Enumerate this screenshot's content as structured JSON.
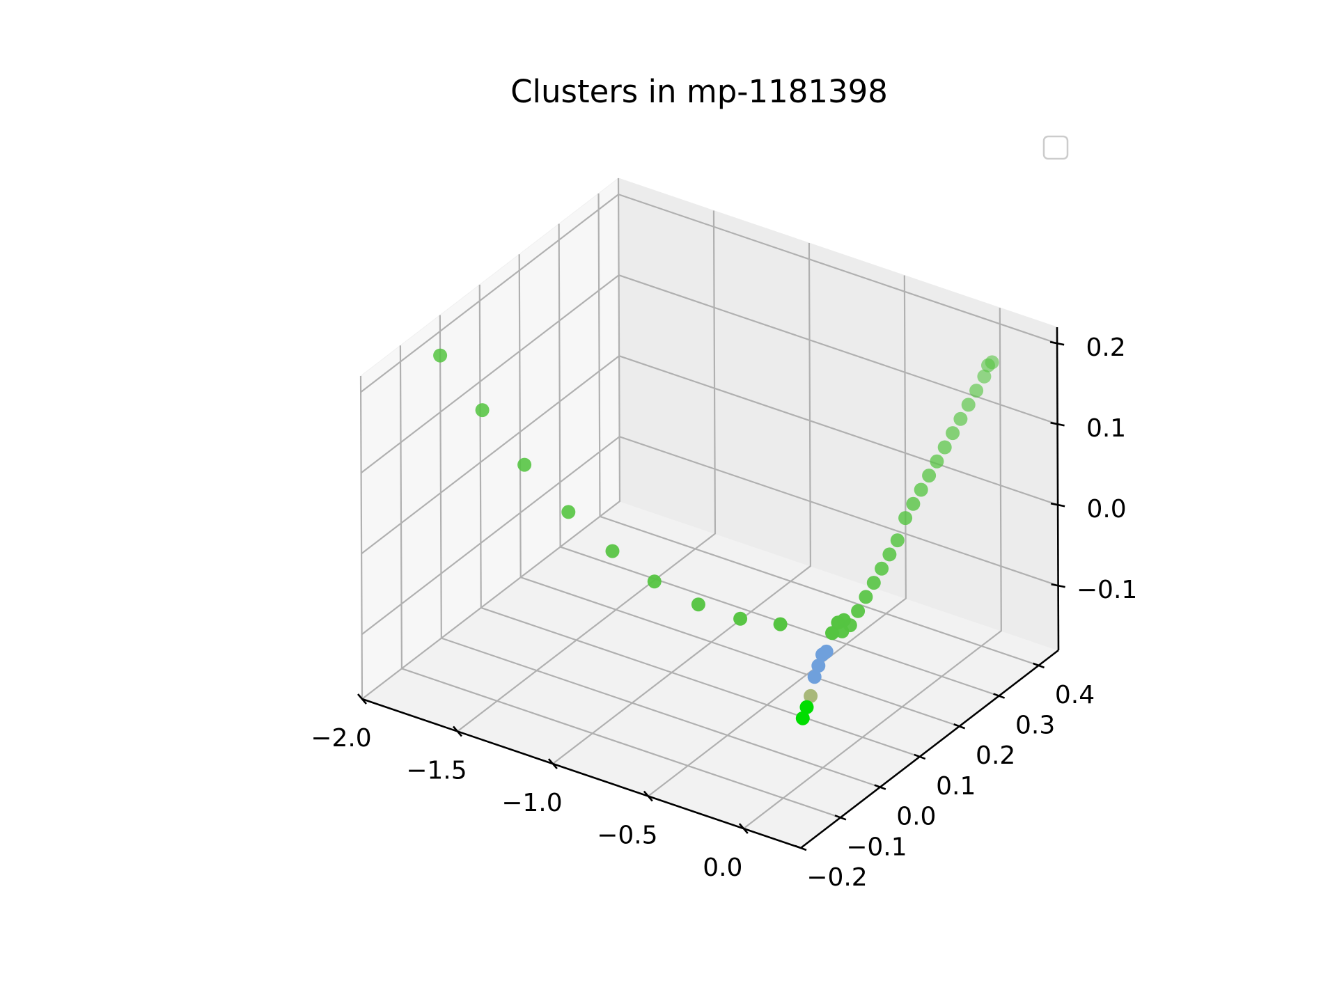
{
  "chart_data": {
    "type": "scatter",
    "projection": "3d",
    "title": "Clusters in mp-1181398",
    "xlabel": "",
    "ylabel": "",
    "zlabel": "",
    "x_ticks": [
      "−2.0",
      "−1.5",
      "−1.0",
      "−0.5",
      "0.0"
    ],
    "y_ticks": [
      "−0.2",
      "−0.1",
      "0.0",
      "0.1",
      "0.2",
      "0.3",
      "0.4"
    ],
    "z_ticks": [
      "−0.1",
      "0.0",
      "0.1",
      "0.2"
    ],
    "xlim": [
      -2.0,
      0.3
    ],
    "ylim": [
      -0.2,
      0.45
    ],
    "zlim": [
      -0.18,
      0.22
    ],
    "grid": true,
    "legend": {
      "placement": "upper-right",
      "entries": []
    },
    "series": [
      {
        "color": "#55c441",
        "points": [
          {
            "x": -2.0,
            "y": 0.0,
            "z": 0.17
          },
          {
            "x": -1.78,
            "y": 0.0,
            "z": 0.12
          },
          {
            "x": -1.56,
            "y": 0.0,
            "z": 0.07
          },
          {
            "x": -1.33,
            "y": 0.0,
            "z": 0.03
          },
          {
            "x": -1.1,
            "y": 0.0,
            "z": 0.0
          },
          {
            "x": -0.88,
            "y": 0.0,
            "z": -0.02
          },
          {
            "x": -0.65,
            "y": 0.0,
            "z": -0.03
          },
          {
            "x": -0.43,
            "y": 0.0,
            "z": -0.03
          },
          {
            "x": -0.22,
            "y": 0.0,
            "z": -0.02
          },
          {
            "x": 0.0,
            "y": 0.05,
            "z": -0.03
          },
          {
            "x": 0.0,
            "y": 0.07,
            "z": -0.03
          },
          {
            "x": 0.0,
            "y": 0.09,
            "z": -0.02
          },
          {
            "x": 0.0,
            "y": 0.11,
            "z": -0.01
          },
          {
            "x": 0.0,
            "y": 0.13,
            "z": 0.0
          },
          {
            "x": 0.0,
            "y": 0.15,
            "z": 0.01
          },
          {
            "x": 0.0,
            "y": 0.17,
            "z": 0.02
          },
          {
            "x": 0.0,
            "y": 0.19,
            "z": 0.03
          },
          {
            "x": 0.0,
            "y": 0.21,
            "z": 0.05
          },
          {
            "x": 0.0,
            "y": 0.23,
            "z": 0.06
          },
          {
            "x": 0.0,
            "y": 0.25,
            "z": 0.07
          },
          {
            "x": 0.0,
            "y": 0.27,
            "z": 0.08
          },
          {
            "x": 0.0,
            "y": 0.29,
            "z": 0.09
          },
          {
            "x": 0.0,
            "y": 0.31,
            "z": 0.1
          },
          {
            "x": 0.0,
            "y": 0.33,
            "z": 0.11
          },
          {
            "x": 0.0,
            "y": 0.35,
            "z": 0.12
          },
          {
            "x": 0.0,
            "y": 0.37,
            "z": 0.13
          },
          {
            "x": 0.0,
            "y": 0.39,
            "z": 0.14
          },
          {
            "x": 0.0,
            "y": 0.41,
            "z": 0.15
          },
          {
            "x": 0.0,
            "y": 0.42,
            "z": 0.16
          },
          {
            "x": 0.0,
            "y": 0.43,
            "z": 0.16
          },
          {
            "x": 0.01,
            "y": 0.02,
            "z": -0.02
          },
          {
            "x": 0.02,
            "y": 0.03,
            "z": -0.01
          },
          {
            "x": 0.03,
            "y": 0.04,
            "z": -0.01
          }
        ]
      },
      {
        "color": "#6fa0dc",
        "points": [
          {
            "x": 0.0,
            "y": 0.0,
            "z": -0.04
          },
          {
            "x": 0.0,
            "y": -0.01,
            "z": -0.05
          },
          {
            "x": 0.0,
            "y": -0.02,
            "z": -0.06
          },
          {
            "x": 0.0,
            "y": 0.01,
            "z": -0.04
          }
        ]
      },
      {
        "color": "#a8b87a",
        "points": [
          {
            "x": 0.0,
            "y": -0.03,
            "z": -0.08
          }
        ]
      },
      {
        "color": "#00dd00",
        "points": [
          {
            "x": 0.0,
            "y": -0.04,
            "z": -0.09
          },
          {
            "x": 0.0,
            "y": -0.05,
            "z": -0.1
          }
        ]
      }
    ]
  }
}
